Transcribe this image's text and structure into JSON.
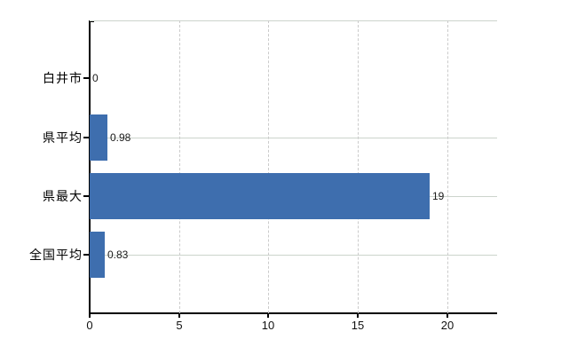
{
  "chart_data": {
    "type": "bar",
    "orientation": "horizontal",
    "title": "",
    "xlabel": "",
    "ylabel": "",
    "categories": [
      "白井市",
      "県平均",
      "県最大",
      "全国平均"
    ],
    "values": [
      0,
      0.98,
      19,
      0.83
    ],
    "value_labels": [
      "0",
      "0.98",
      "19",
      "0.83"
    ],
    "x_ticks": [
      0,
      5,
      10,
      15,
      20
    ],
    "x_tick_labels": [
      "0",
      "5",
      "10",
      "15",
      "20"
    ],
    "xlim": [
      0,
      22.8
    ],
    "grid": "on",
    "gridline_style": "vertical dashed, horizontal solid at category rows, dashed top border",
    "legend": "none",
    "bar_color": "#3e6eae",
    "axis_color": "#000000",
    "gridline_color": "#cccccc",
    "background_color": "#ffffff"
  }
}
